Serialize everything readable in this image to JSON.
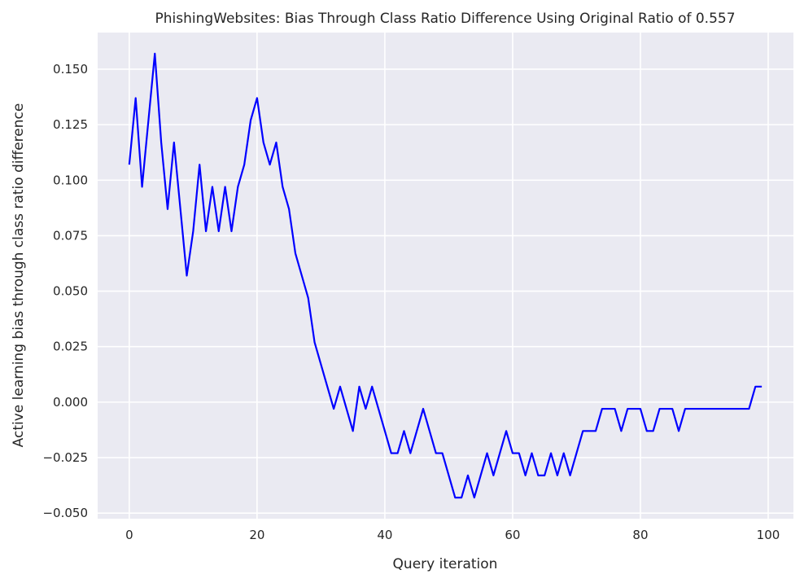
{
  "chart_data": {
    "type": "line",
    "title": "PhishingWebsites: Bias Through Class Ratio Difference Using Original Ratio of 0.557",
    "xlabel": "Query iteration",
    "ylabel": "Active learning bias through class ratio difference",
    "xlim": [
      -4.95,
      103.95
    ],
    "ylim": [
      -0.0525,
      0.1665
    ],
    "xticks": [
      0,
      20,
      40,
      60,
      80,
      100
    ],
    "yticks": [
      -0.05,
      -0.025,
      0.0,
      0.025,
      0.05,
      0.075,
      0.1,
      0.125,
      0.15
    ],
    "xtick_labels": [
      "0",
      "20",
      "40",
      "60",
      "80",
      "100"
    ],
    "ytick_labels": [
      "−0.050",
      "−0.025",
      "0.000",
      "0.025",
      "0.050",
      "0.075",
      "0.100",
      "0.125",
      "0.150"
    ],
    "grid": true,
    "background": "#EAEAF2",
    "grid_color": "#FFFFFF",
    "series": [
      {
        "color": "#0000FF",
        "x": [
          0,
          1,
          2,
          3,
          4,
          5,
          6,
          7,
          8,
          9,
          10,
          11,
          12,
          13,
          14,
          15,
          16,
          17,
          18,
          19,
          20,
          21,
          22,
          23,
          24,
          25,
          26,
          27,
          28,
          29,
          30,
          31,
          32,
          33,
          34,
          35,
          36,
          37,
          38,
          39,
          40,
          41,
          42,
          43,
          44,
          45,
          46,
          47,
          48,
          49,
          50,
          51,
          52,
          53,
          54,
          55,
          56,
          57,
          58,
          59,
          60,
          61,
          62,
          63,
          64,
          65,
          66,
          67,
          68,
          69,
          70,
          71,
          72,
          73,
          74,
          75,
          76,
          77,
          78,
          79,
          80,
          81,
          82,
          83,
          84,
          85,
          86,
          87,
          88,
          89,
          90,
          91,
          92,
          93,
          94,
          95,
          96,
          97,
          98,
          99
        ],
        "y": [
          0.107,
          0.137,
          0.097,
          0.127,
          0.157,
          0.117,
          0.087,
          0.117,
          0.087,
          0.057,
          0.077,
          0.107,
          0.077,
          0.097,
          0.077,
          0.097,
          0.077,
          0.097,
          0.107,
          0.127,
          0.137,
          0.117,
          0.107,
          0.117,
          0.097,
          0.087,
          0.067,
          0.057,
          0.047,
          0.027,
          0.017,
          0.007,
          -0.003,
          0.007,
          -0.003,
          -0.013,
          0.007,
          -0.003,
          0.007,
          -0.003,
          -0.013,
          -0.023,
          -0.023,
          -0.013,
          -0.023,
          -0.013,
          -0.003,
          -0.013,
          -0.023,
          -0.023,
          -0.033,
          -0.043,
          -0.043,
          -0.033,
          -0.043,
          -0.033,
          -0.023,
          -0.033,
          -0.023,
          -0.013,
          -0.023,
          -0.023,
          -0.033,
          -0.023,
          -0.033,
          -0.033,
          -0.023,
          -0.033,
          -0.023,
          -0.033,
          -0.023,
          -0.013,
          -0.013,
          -0.013,
          -0.003,
          -0.003,
          -0.003,
          -0.013,
          -0.003,
          -0.003,
          -0.003,
          -0.013,
          -0.013,
          -0.003,
          -0.003,
          -0.003,
          -0.013,
          -0.003,
          -0.003,
          -0.003,
          -0.003,
          -0.003,
          -0.003,
          -0.003,
          -0.003,
          -0.003,
          -0.003,
          -0.003,
          0.007,
          0.007
        ]
      }
    ]
  }
}
